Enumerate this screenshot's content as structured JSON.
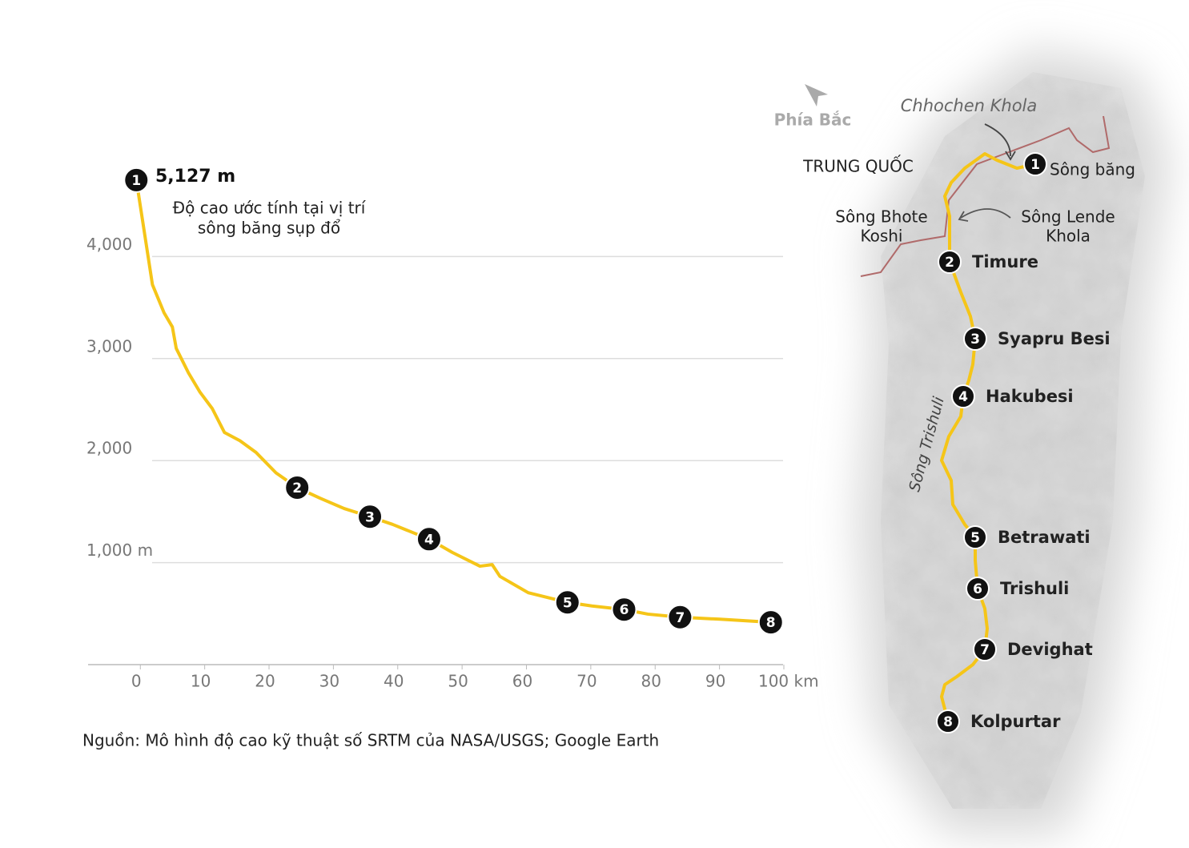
{
  "chart_data": {
    "type": "line",
    "annotation_value": "5,127 m",
    "annotation_text": [
      "Độ cao ước tính tại vị trí",
      "sông băng sụp đổ"
    ],
    "source": "Nguồn: Mô hình độ cao kỹ thuật số SRTM của NASA/USGS; Google Earth",
    "x": [
      0,
      2.5,
      4.3,
      5.6,
      6.2,
      8.1,
      9.9,
      11.8,
      13.7,
      16.1,
      18.6,
      21.7,
      25,
      28.6,
      32.3,
      36.3,
      39.8,
      45.5,
      49.1,
      53.4,
      55.3,
      56.5,
      60.9,
      67,
      70.8,
      75.8,
      79.5,
      84.5,
      90.7,
      98.6
    ],
    "series": [
      {
        "color": "#f5c518",
        "values": [
          4750,
          3725,
          3450,
          3310,
          3100,
          2860,
          2670,
          2510,
          2275,
          2195,
          2080,
          1880,
          1735,
          1630,
          1530,
          1450,
          1375,
          1230,
          1100,
          965,
          980,
          865,
          705,
          610,
          575,
          540,
          495,
          465,
          445,
          415
        ]
      }
    ],
    "markers": [
      {
        "label": "1",
        "x": 0,
        "y": 4750
      },
      {
        "label": "2",
        "x": 25,
        "y": 1735
      },
      {
        "label": "3",
        "x": 36.3,
        "y": 1450
      },
      {
        "label": "4",
        "x": 45.5,
        "y": 1230
      },
      {
        "label": "5",
        "x": 67,
        "y": 610
      },
      {
        "label": "6",
        "x": 75.8,
        "y": 540
      },
      {
        "label": "7",
        "x": 84.5,
        "y": 465
      },
      {
        "label": "8",
        "x": 98.6,
        "y": 415
      }
    ],
    "xlim": [
      -7.5,
      100.5
    ],
    "ylim": [
      0,
      5000
    ],
    "xticks": [
      0,
      10,
      20,
      30,
      40,
      50,
      60,
      70,
      80,
      90,
      {
        "value": 100,
        "label": "100 km"
      }
    ],
    "yticks": [
      {
        "value": 1000,
        "label": "1,000 m"
      },
      {
        "value": 2000,
        "label": "2,000"
      },
      {
        "value": 3000,
        "label": "3,000"
      },
      {
        "value": 4000,
        "label": "4,000"
      }
    ],
    "grid": true
  },
  "map": {
    "north": "Phía Bắc",
    "labels": {
      "tributary": "Chhochen Khola",
      "country": "TRUNG QUỐC",
      "bhote": [
        "Sông Bhote",
        "Koshi"
      ],
      "lende": [
        "Sông Lende",
        "Khola"
      ],
      "river": "Sông Trishuli"
    },
    "stops": [
      {
        "number": "1",
        "name": "Sông băng"
      },
      {
        "number": "2",
        "name": "Timure"
      },
      {
        "number": "3",
        "name": "Syapru Besi"
      },
      {
        "number": "4",
        "name": "Hakubesi"
      },
      {
        "number": "5",
        "name": "Betrawati"
      },
      {
        "number": "6",
        "name": "Trishuli"
      },
      {
        "number": "7",
        "name": "Devighat"
      },
      {
        "number": "8",
        "name": "Kolpurtar"
      }
    ]
  }
}
